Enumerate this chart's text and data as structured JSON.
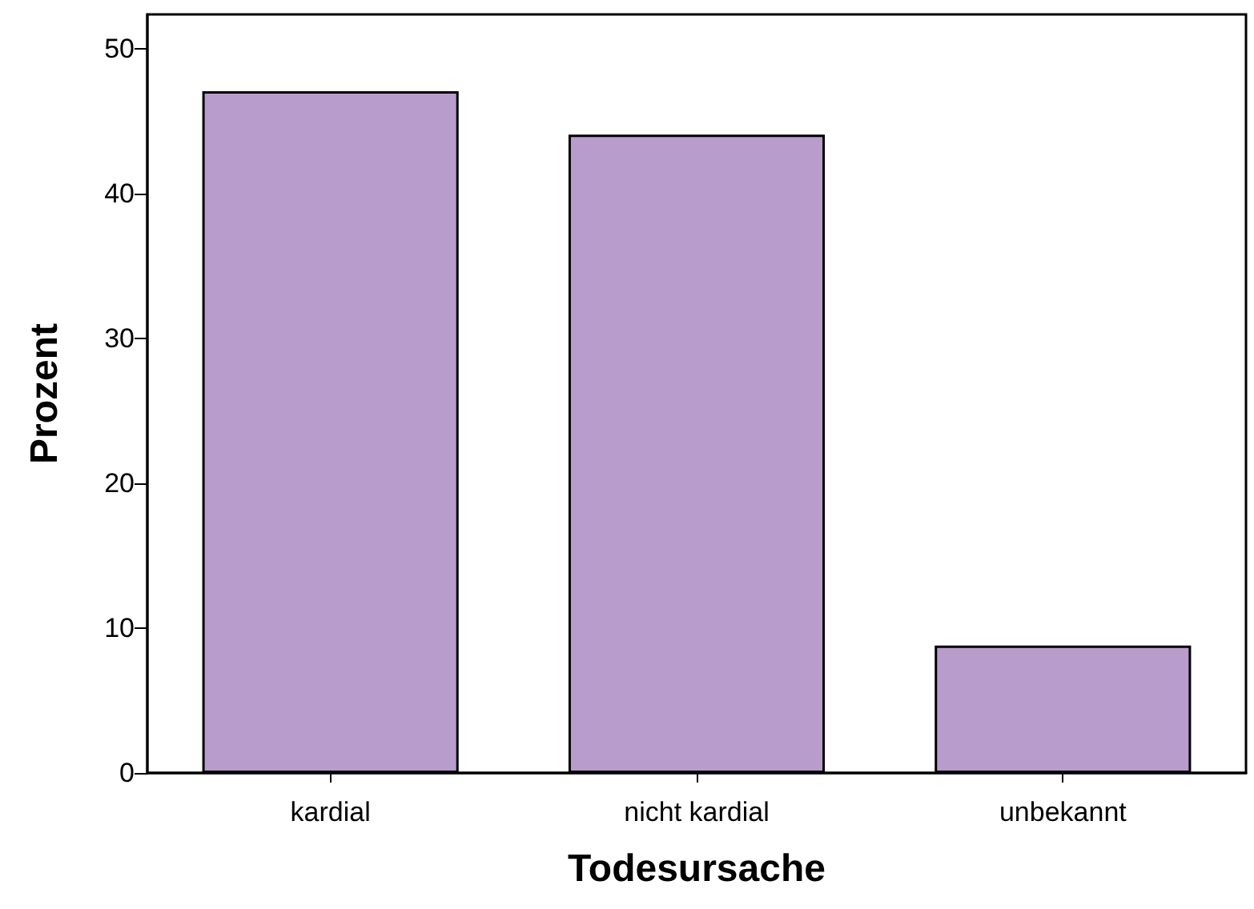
{
  "chart_data": {
    "type": "bar",
    "xlabel": "Todesursache",
    "ylabel": "Prozent",
    "categories": [
      "kardial",
      "nicht kardial",
      "unbekannt"
    ],
    "values": [
      47.1,
      44.1,
      8.8
    ],
    "color": "#b89ccb",
    "ylim": [
      0,
      52.4
    ],
    "yticks": [
      0,
      10,
      20,
      30,
      40,
      50
    ],
    "grid": false
  }
}
